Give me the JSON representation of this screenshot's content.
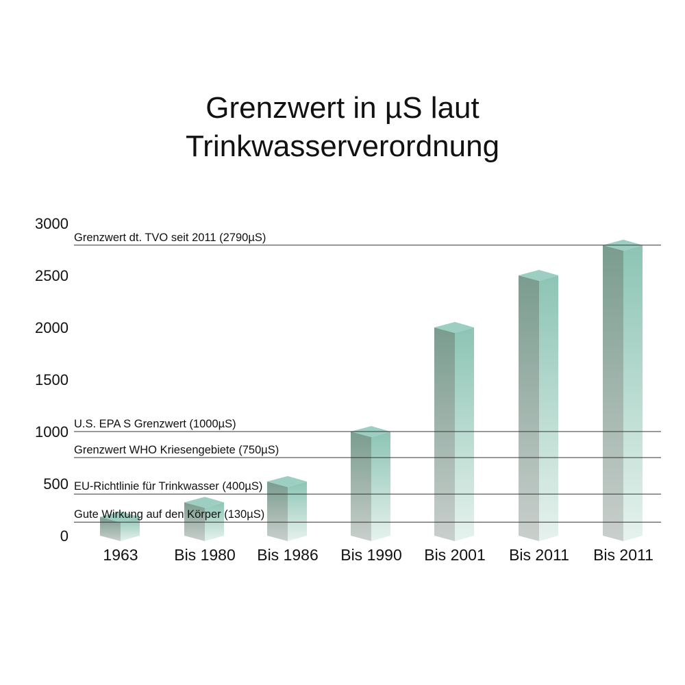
{
  "chart_data": {
    "type": "bar",
    "title_lines": [
      "Grenzwert in µS laut",
      "Trinkwasserverordnung"
    ],
    "categories": [
      "1963",
      "Bis 1980",
      "Bis 1986",
      "Bis 1990",
      "Bis 2001",
      "Bis 2011",
      "Bis 2011"
    ],
    "values": [
      180,
      320,
      520,
      1000,
      2000,
      2500,
      2790
    ],
    "ylim": [
      0,
      3000
    ],
    "yticks": [
      0,
      500,
      1000,
      1500,
      2000,
      2500,
      3000
    ],
    "reference_lines": [
      {
        "label": "Grenzwert dt. TVO seit 2011 (2790µS)",
        "value": 2790
      },
      {
        "label": "U.S. EPA S Grenzwert (1000µS)",
        "value": 1000
      },
      {
        "label": "Grenzwert WHO Kriesengebiete (750µS)",
        "value": 750
      },
      {
        "label": "EU-Richtlinie für Trinkwasser (400µS)",
        "value": 400
      },
      {
        "label": "Gute Wirkung auf den Körper (130µS)",
        "value": 130
      }
    ],
    "colors": {
      "bar_top": "#9ccfc1",
      "bar_front_top": "#7a9c8f",
      "bar_front_bottom": "#c9cfcc",
      "bar_side_top": "#8cc4b4",
      "bar_side_bottom": "#e6f2ed",
      "ref_line": "#333333"
    }
  }
}
